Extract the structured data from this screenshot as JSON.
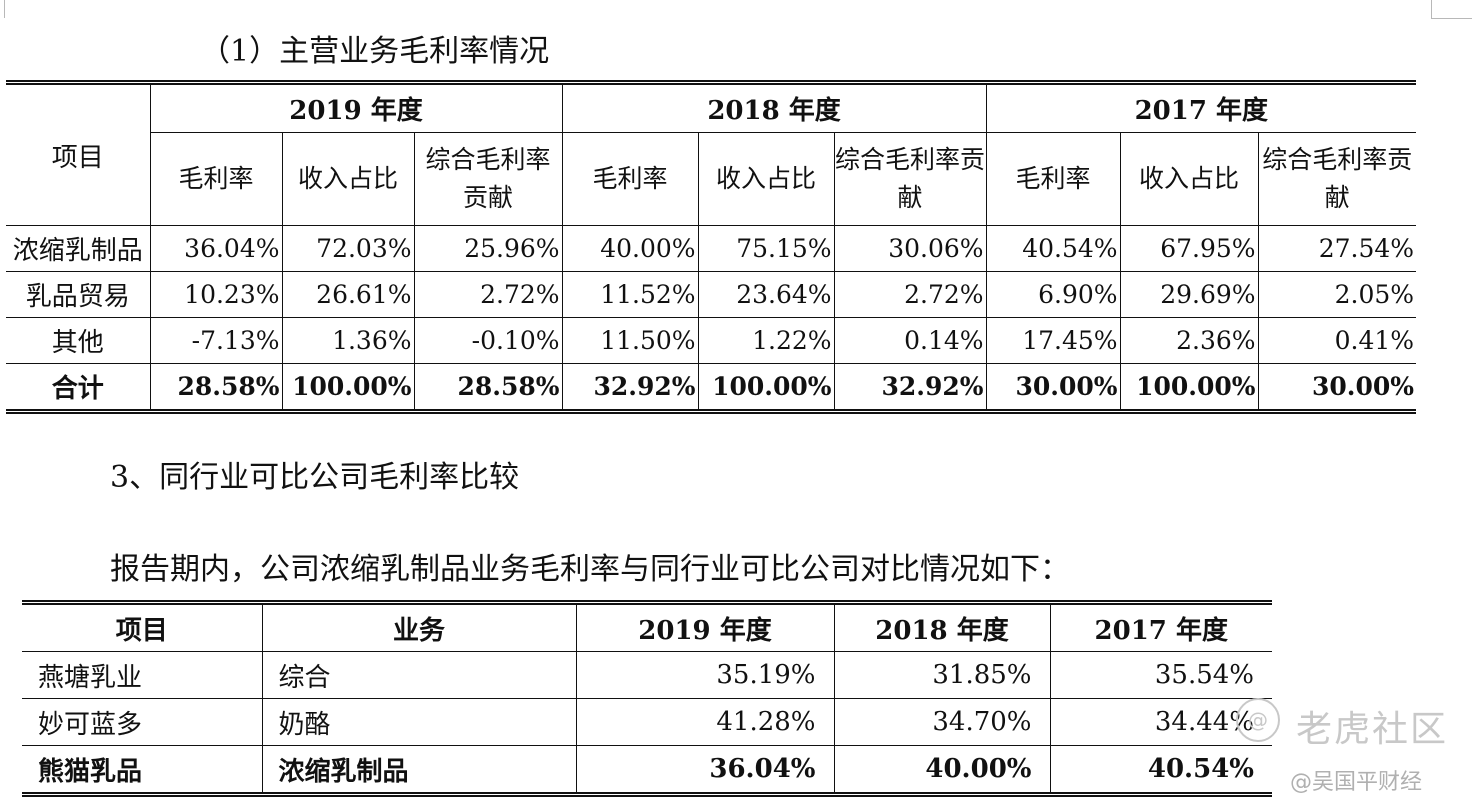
{
  "section1_title": "（1）主营业务毛利率情况",
  "table1": {
    "item_header": "项目",
    "years": [
      "2019 年度",
      "2018 年度",
      "2017 年度"
    ],
    "sub_headers": [
      "毛利率",
      "收入占比",
      "综合毛利率贡献"
    ],
    "rows": [
      {
        "name": "浓缩乳制品",
        "values": [
          "36.04%",
          "72.03%",
          "25.96%",
          "40.00%",
          "75.15%",
          "30.06%",
          "40.54%",
          "67.95%",
          "27.54%"
        ]
      },
      {
        "name": "乳品贸易",
        "values": [
          "10.23%",
          "26.61%",
          "2.72%",
          "11.52%",
          "23.64%",
          "2.72%",
          "6.90%",
          "29.69%",
          "2.05%"
        ]
      },
      {
        "name": "其他",
        "values": [
          "-7.13%",
          "1.36%",
          "-0.10%",
          "11.50%",
          "1.22%",
          "0.14%",
          "17.45%",
          "2.36%",
          "0.41%"
        ]
      },
      {
        "name": "合计",
        "values": [
          "28.58%",
          "100.00%",
          "28.58%",
          "32.92%",
          "100.00%",
          "32.92%",
          "30.00%",
          "100.00%",
          "30.00%"
        ]
      }
    ]
  },
  "section2_title": "3、同行业可比公司毛利率比较",
  "section2_intro": "报告期内，公司浓缩乳制品业务毛利率与同行业可比公司对比情况如下：",
  "table2": {
    "headers": [
      "项目",
      "业务",
      "2019 年度",
      "2018 年度",
      "2017 年度"
    ],
    "rows": [
      {
        "company": "燕塘乳业",
        "business": "综合",
        "values": [
          "35.19%",
          "31.85%",
          "35.54%"
        ]
      },
      {
        "company": "妙可蓝多",
        "business": "奶酪",
        "values": [
          "41.28%",
          "34.70%",
          "34.44%"
        ]
      },
      {
        "company": "熊猫乳品",
        "business": "浓缩乳制品",
        "values": [
          "36.04%",
          "40.00%",
          "40.54%"
        ]
      }
    ]
  },
  "watermark": {
    "logo_glyph": "@",
    "brand": "老虎社区",
    "author": "@吴国平财经"
  }
}
